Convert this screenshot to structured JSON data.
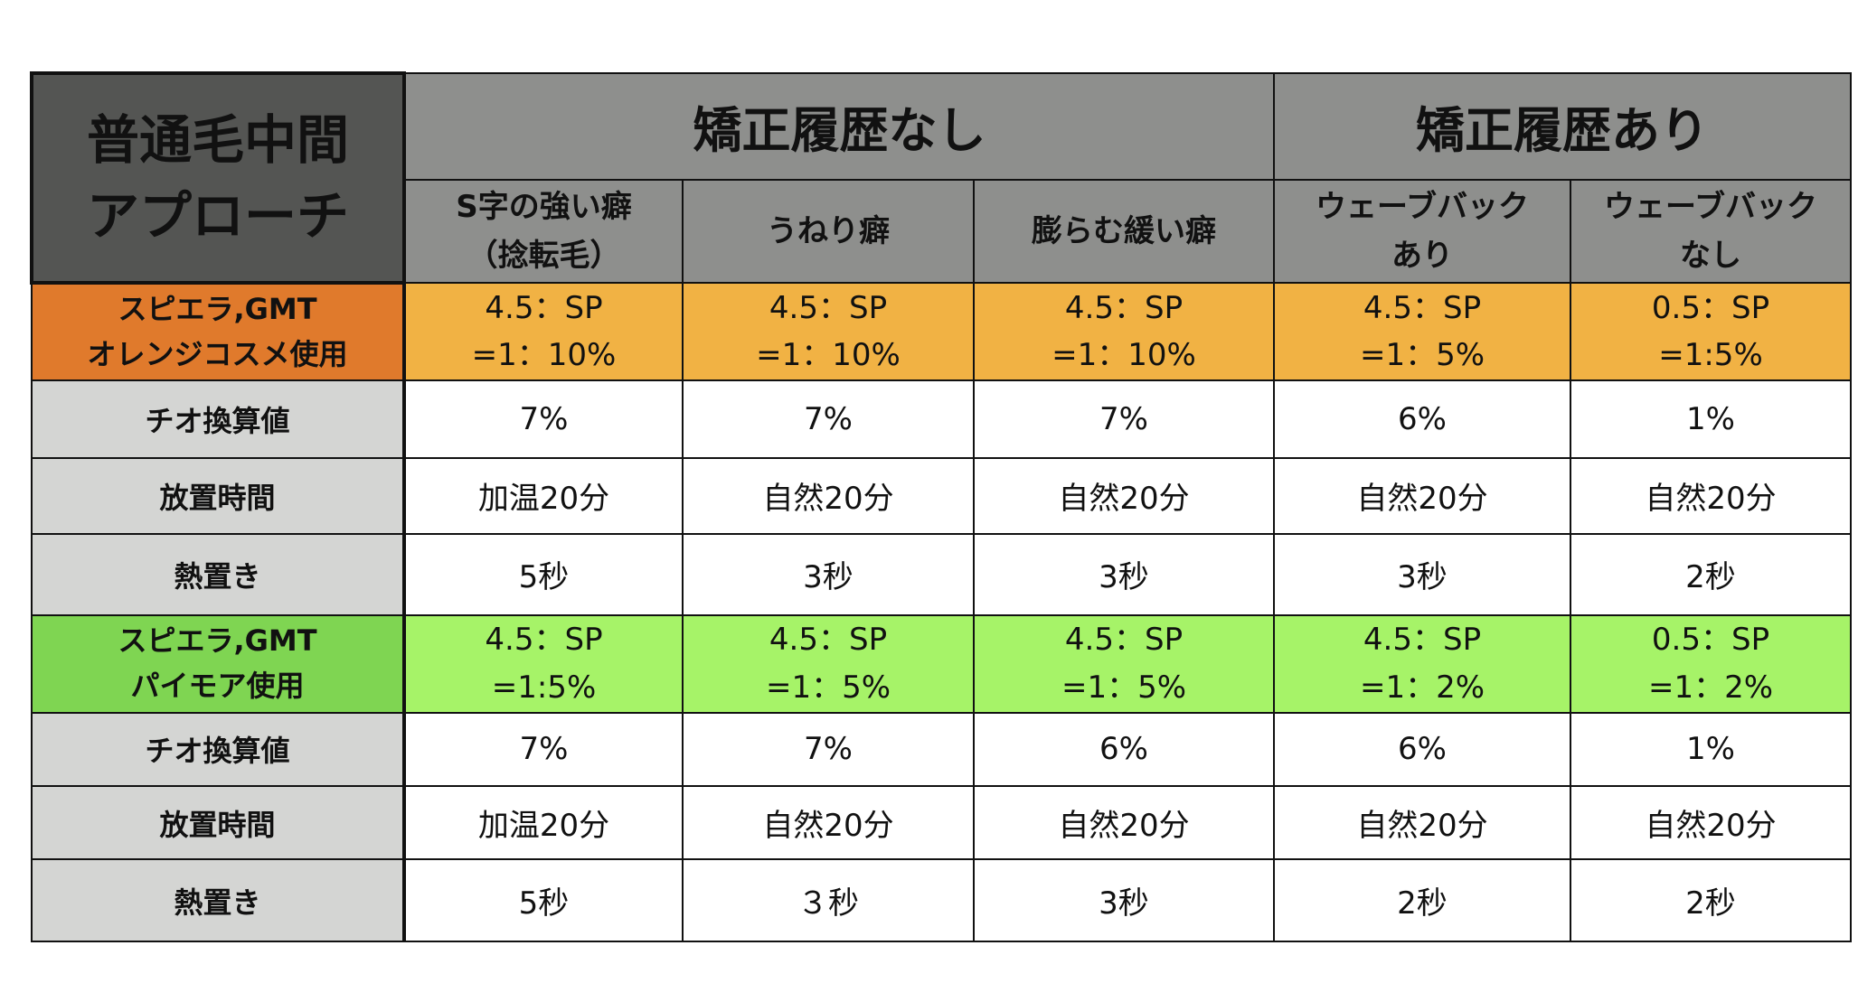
{
  "corner": {
    "line1": "普通毛中間",
    "line2": "アプローチ"
  },
  "groups": {
    "no_history": "矯正履歴なし",
    "with_history": "矯正履歴あり"
  },
  "subheaders": [
    {
      "line1": "S字の強い癖",
      "line2": "（捻転毛）"
    },
    {
      "line1": "うねり癖",
      "line2": ""
    },
    {
      "line1": "膨らむ緩い癖",
      "line2": ""
    },
    {
      "line1": "ウェーブバック",
      "line2": "あり"
    },
    {
      "line1": "ウェーブバック",
      "line2": "なし"
    }
  ],
  "section1": {
    "label": {
      "line1": "スピエラ,GMT",
      "line2": "オレンジコスメ使用"
    },
    "ratio": [
      {
        "line1": "4.5：SP",
        "line2": "=1：10%"
      },
      {
        "line1": "4.5：SP",
        "line2": "=1：10%"
      },
      {
        "line1": "4.5：SP",
        "line2": "=1：10%"
      },
      {
        "line1": "4.5：SP",
        "line2": "=1：5%"
      },
      {
        "line1": "0.5：SP",
        "line2": "=1:5%"
      }
    ],
    "rows": [
      {
        "label": "チオ換算値",
        "values": [
          "7%",
          "7%",
          "7%",
          "6%",
          "1%"
        ]
      },
      {
        "label": "放置時間",
        "values": [
          "加温20分",
          "自然20分",
          "自然20分",
          "自然20分",
          "自然20分"
        ]
      },
      {
        "label": "熱置き",
        "values": [
          "5秒",
          "3秒",
          "3秒",
          "3秒",
          "2秒"
        ]
      }
    ]
  },
  "section2": {
    "label": {
      "line1": "スピエラ,GMT",
      "line2": "パイモア使用"
    },
    "ratio": [
      {
        "line1": "4.5：SP",
        "line2": "=1:5%"
      },
      {
        "line1": "4.5：SP",
        "line2": "=1：5%"
      },
      {
        "line1": "4.5：SP",
        "line2": "=1：5%"
      },
      {
        "line1": "4.5：SP",
        "line2": "=1：2%"
      },
      {
        "line1": "0.5：SP",
        "line2": "=1：2%"
      }
    ],
    "rows": [
      {
        "label": "チオ換算値",
        "values": [
          "7%",
          "7%",
          "6%",
          "6%",
          "1%"
        ]
      },
      {
        "label": "放置時間",
        "values": [
          "加温20分",
          "自然20分",
          "自然20分",
          "自然20分",
          "自然20分"
        ]
      },
      {
        "label": "熱置き",
        "values": [
          "5秒",
          "３秒",
          "3秒",
          "2秒",
          "2秒"
        ]
      }
    ]
  },
  "colors": {
    "corner": "#545553",
    "header": "#8e8f8d",
    "label": "#d4d5d3",
    "orange_label": "#e07a2c",
    "orange_cell": "#f1b244",
    "green_label": "#7fd552",
    "green_cell": "#a6f368"
  }
}
